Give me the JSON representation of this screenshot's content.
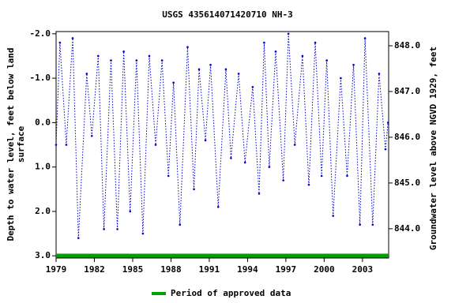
{
  "chart_data": {
    "type": "line",
    "title": "USGS 435614071420710 NH-3",
    "y_label": [
      "Depth to water level, feet below land",
      "surface"
    ],
    "y2_label": "Groundwater level above NGVD 1929, feet",
    "x": [
      1979.0,
      1979.3,
      1979.8,
      1980.3,
      1980.75,
      1981.4,
      1981.8,
      1982.3,
      1982.75,
      1983.3,
      1983.8,
      1984.3,
      1984.8,
      1985.3,
      1985.8,
      1986.3,
      1986.8,
      1987.3,
      1987.8,
      1988.2,
      1988.7,
      1989.3,
      1989.8,
      1990.2,
      1990.7,
      1991.1,
      1991.7,
      1992.3,
      1992.7,
      1993.3,
      1993.8,
      1994.4,
      1994.9,
      1995.3,
      1995.7,
      1996.2,
      1996.8,
      1997.2,
      1997.7,
      1998.3,
      1998.8,
      1999.3,
      1999.8,
      2000.2,
      2000.7,
      2001.3,
      2001.8,
      2002.3,
      2002.8,
      2003.2,
      2003.8,
      2004.3,
      2004.8,
      2005.0
    ],
    "series": [
      {
        "name": "Depth to water level",
        "color": "#0000cc",
        "values": [
          0.5,
          -1.8,
          0.5,
          -1.9,
          2.6,
          -1.1,
          0.3,
          -1.5,
          2.4,
          -1.4,
          2.4,
          -1.6,
          2.0,
          -1.4,
          2.5,
          -1.5,
          0.5,
          -1.4,
          1.2,
          -0.9,
          2.3,
          -1.7,
          1.5,
          -1.2,
          0.4,
          -1.3,
          1.9,
          -1.2,
          0.8,
          -1.1,
          0.9,
          -0.8,
          1.6,
          -1.8,
          1.0,
          -1.6,
          1.3,
          -2.0,
          0.5,
          -1.5,
          1.4,
          -1.8,
          1.2,
          -1.4,
          2.1,
          -1.0,
          1.2,
          -1.3,
          2.3,
          -1.9,
          2.3,
          -1.1,
          0.6,
          0.0
        ]
      }
    ],
    "xlim": [
      1979,
      2005.05
    ],
    "xticks": [
      1979,
      1982,
      1985,
      1988,
      1991,
      1994,
      1997,
      2000,
      2003
    ],
    "ylim": [
      3.05,
      -2.05
    ],
    "yticks": [
      {
        "value": -2,
        "label": "-2.0"
      },
      {
        "value": -1,
        "label": "-1.0"
      },
      {
        "value": 0,
        "label": "0.0"
      },
      {
        "value": 1,
        "label": "1.0"
      },
      {
        "value": 2,
        "label": "2.0"
      },
      {
        "value": 3,
        "label": "3.0"
      }
    ],
    "y2lim": [
      843.36,
      848.31
    ],
    "y2ticks": [
      {
        "value": 844,
        "label": "844.0"
      },
      {
        "value": 845,
        "label": "845.0"
      },
      {
        "value": 846,
        "label": "846.0"
      },
      {
        "value": 847,
        "label": "847.0"
      },
      {
        "value": 848,
        "label": "848.0"
      }
    ],
    "approved_period": {
      "name": "Period of approved data",
      "color": "#00a000",
      "start": 1979,
      "end": 2005.05
    }
  }
}
